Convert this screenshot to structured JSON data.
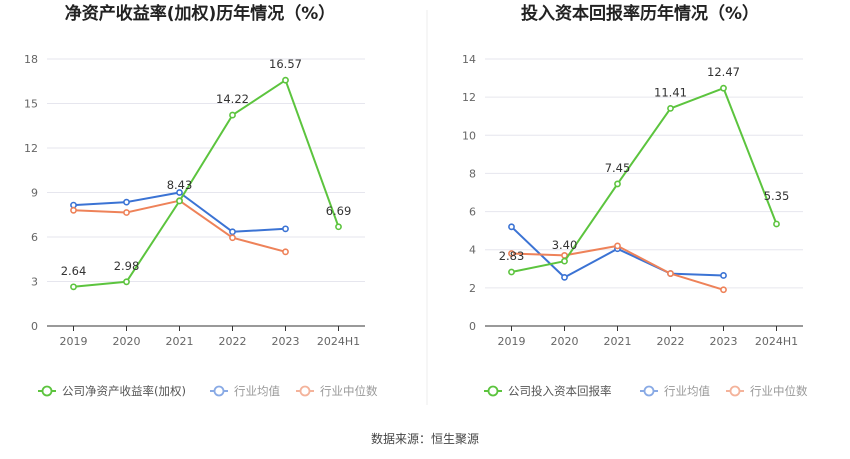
{
  "chart_data": [
    {
      "type": "line",
      "title": "净资产收益率(加权)历年情况（%）",
      "categories": [
        "2019",
        "2020",
        "2021",
        "2022",
        "2023",
        "2024H1"
      ],
      "ylim": [
        0,
        18
      ],
      "yticks": [
        0,
        3,
        6,
        9,
        12,
        15,
        18
      ],
      "grid": true,
      "legend": "bottom",
      "series": [
        {
          "name": "公司净资产收益率(加权)",
          "color": "#5cc43e",
          "values": [
            2.64,
            2.98,
            8.43,
            14.22,
            16.57,
            6.69
          ],
          "labels": [
            "2.64",
            "2.98",
            "8.43",
            "14.22",
            "16.57",
            "6.69"
          ]
        },
        {
          "name": "行业均值",
          "color": "#3b73d4",
          "values": [
            8.15,
            8.35,
            9.0,
            6.35,
            6.55,
            null
          ]
        },
        {
          "name": "行业中位数",
          "color": "#ee8259",
          "values": [
            7.8,
            7.65,
            8.45,
            5.95,
            5.0,
            null
          ]
        }
      ]
    },
    {
      "type": "line",
      "title": "投入资本回报率历年情况（%）",
      "categories": [
        "2019",
        "2020",
        "2021",
        "2022",
        "2023",
        "2024H1"
      ],
      "ylim": [
        0,
        14
      ],
      "yticks": [
        0,
        2,
        4,
        6,
        8,
        10,
        12,
        14
      ],
      "grid": true,
      "legend": "bottom",
      "series": [
        {
          "name": "公司投入资本回报率",
          "color": "#5cc43e",
          "values": [
            2.83,
            3.4,
            7.45,
            11.41,
            12.47,
            5.35
          ],
          "labels": [
            "2.83",
            "3.40",
            "7.45",
            "11.41",
            "12.47",
            "5.35"
          ]
        },
        {
          "name": "行业均值",
          "color": "#3b73d4",
          "values": [
            5.2,
            2.55,
            4.05,
            2.75,
            2.65,
            null
          ]
        },
        {
          "name": "行业中位数",
          "color": "#ee8259",
          "values": [
            3.8,
            3.7,
            4.2,
            2.75,
            1.9,
            null
          ]
        }
      ]
    }
  ],
  "footer": {
    "source": "数据来源：恒生聚源"
  }
}
